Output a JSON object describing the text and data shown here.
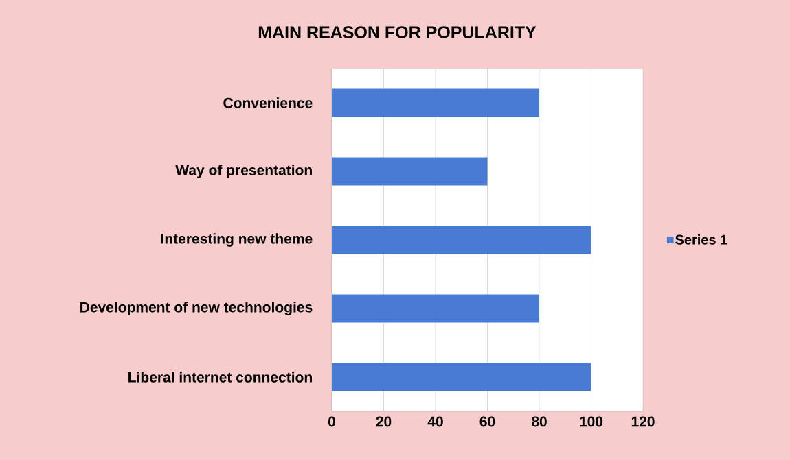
{
  "chart_data": {
    "type": "bar",
    "orientation": "horizontal",
    "title": "MAIN REASON FOR POPULARITY",
    "categories": [
      "Convenience",
      "Way of presentation",
      "Interesting new theme",
      "Development of new technologies",
      "Liberal internet connection"
    ],
    "series": [
      {
        "name": "Series 1",
        "color": "#4a7bd4",
        "values": [
          80,
          60,
          100,
          80,
          100
        ]
      }
    ],
    "xlim": [
      0,
      120
    ],
    "xticks": [
      0,
      20,
      40,
      60,
      80,
      100,
      120
    ],
    "grid": "x",
    "legend": "right"
  }
}
